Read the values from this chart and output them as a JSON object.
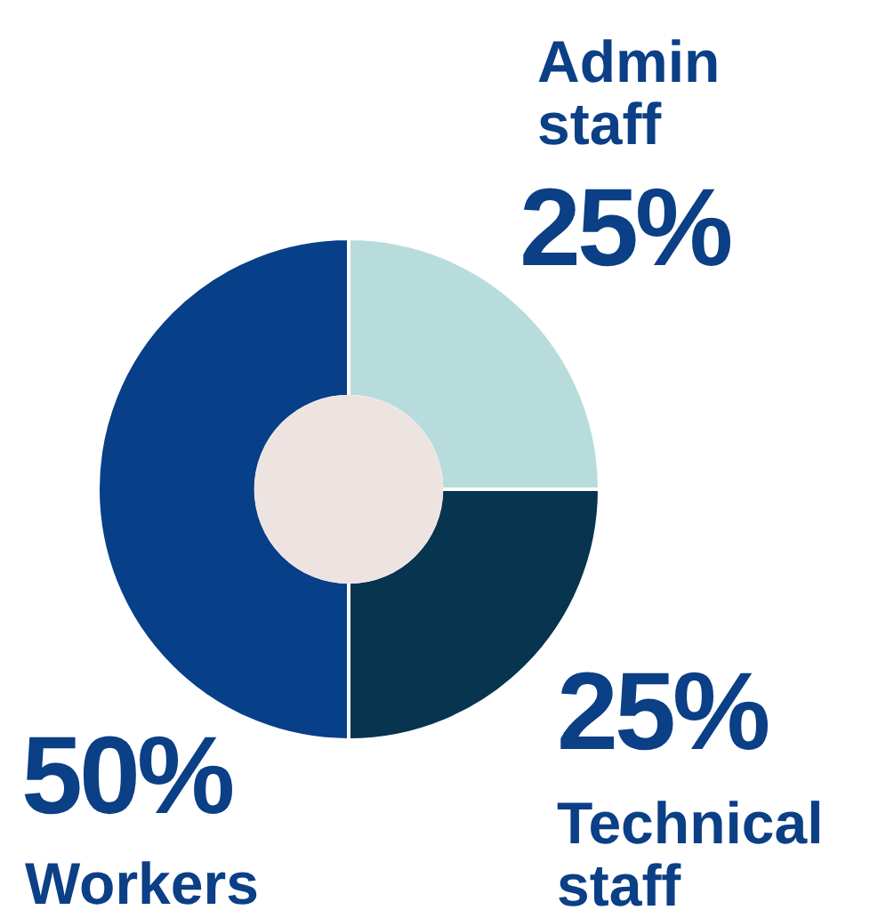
{
  "chart_data": {
    "type": "donut",
    "categories": [
      "Admin staff",
      "Technical staff",
      "Workers"
    ],
    "values": [
      25,
      25,
      50
    ],
    "colors": [
      "#b8dcdc",
      "#07344f",
      "#073f88"
    ],
    "value_labels": [
      "25%",
      "25%",
      "50%"
    ]
  }
}
